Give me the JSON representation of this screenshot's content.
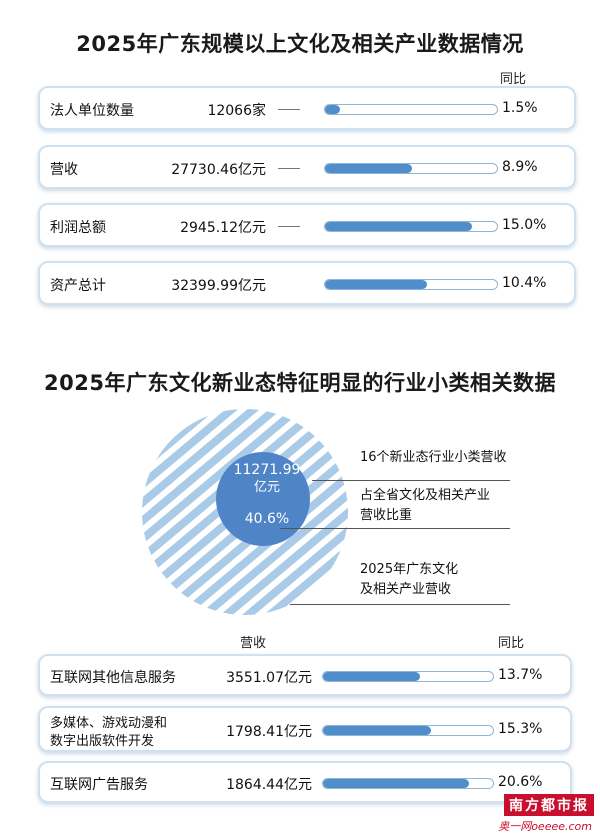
{
  "section1": {
    "title": "2025年广东规模以上文化及相关产业数据情况",
    "yoy_header": "同比",
    "rows": [
      {
        "label": "法人单位数量",
        "value": "12066家",
        "yoy": "1.5%",
        "yoy_value": 1.5
      },
      {
        "label": "营收",
        "value": "27730.46亿元",
        "yoy": "8.9%",
        "yoy_value": 8.9
      },
      {
        "label": "利润总额",
        "value": "2945.12亿元",
        "yoy": "15.0%",
        "yoy_value": 15.0
      },
      {
        "label": "资产总计",
        "value": "32399.99亿元",
        "yoy": "10.4%",
        "yoy_value": 10.4
      }
    ]
  },
  "section2": {
    "title": "2025年广东文化新业态特征明显的行业小类相关数据",
    "center_value": "11271.99",
    "center_unit": "亿元",
    "center_pct": "40.6%",
    "share": 40.6,
    "anno1": "16个新业态行业小类营收",
    "anno2_line1": "占全省文化及相关产业",
    "anno2_line2": "营收比重",
    "anno3_line1": "2025年广东文化",
    "anno3_line2": "及相关产业营收",
    "revenue_header": "营收",
    "yoy_header": "同比",
    "rows": [
      {
        "label": "互联网其他信息服务",
        "value": "3551.07亿元",
        "yoy": "13.7%",
        "yoy_value": 13.7
      },
      {
        "label_line1": "多媒体、游戏动漫和",
        "label_line2": "数字出版软件开发",
        "value": "1798.41亿元",
        "yoy": "15.3%",
        "yoy_value": 15.3
      },
      {
        "label": "互联网广告服务",
        "value": "1864.44亿元",
        "yoy": "20.6%",
        "yoy_value": 20.6
      }
    ]
  },
  "chart_data": [
    {
      "type": "bar",
      "title": "2025年广东规模以上文化及相关产业数据情况",
      "categories": [
        "法人单位数量",
        "营收",
        "利润总额",
        "资产总计"
      ],
      "values_text": [
        "12066家",
        "27730.46亿元",
        "2945.12亿元",
        "32399.99亿元"
      ],
      "series": [
        {
          "name": "同比",
          "values": [
            1.5,
            8.9,
            15.0,
            10.4
          ]
        }
      ]
    },
    {
      "type": "pie",
      "title": "2025年广东文化新业态特征明显的行业小类相关数据",
      "values": [
        40.6
      ],
      "center_value": "11271.99亿元"
    },
    {
      "type": "bar",
      "categories": [
        "互联网其他信息服务",
        "多媒体、游戏动漫和数字出版软件开发",
        "互联网广告服务"
      ],
      "values_text": [
        "3551.07亿元",
        "1798.41亿元",
        "1864.44亿元"
      ],
      "series": [
        {
          "name": "同比",
          "values": [
            13.7,
            15.3,
            20.6
          ]
        }
      ]
    }
  ],
  "brand": {
    "logo": "南方都市报",
    "site": "奥一网oeeee.com"
  },
  "colors": {
    "bar": "#4f8ecb",
    "stripe": "#a9cbe8",
    "card_border": "#cfe0ee",
    "circle": "#4f85c7"
  }
}
